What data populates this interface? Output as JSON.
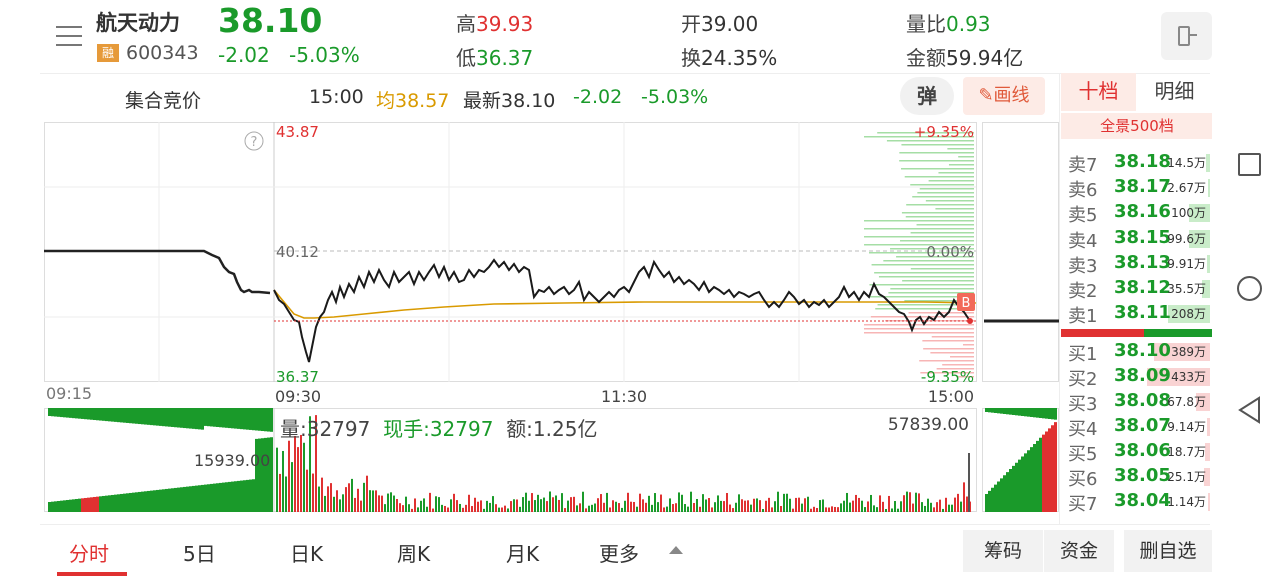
{
  "stock": {
    "name": "航天动力",
    "code": "600343",
    "badge": "融",
    "price": "38.10",
    "change": "-2.02",
    "change_pct": "-5.03%"
  },
  "stats": {
    "high_label": "高",
    "high": "39.93",
    "low_label": "低",
    "low": "36.37",
    "open_label": "开",
    "open": "39.00",
    "turnover_label": "换",
    "turnover": "24.35%",
    "vol_ratio_label": "量比",
    "vol_ratio": "0.93",
    "amount_label": "金额",
    "amount": "59.94亿"
  },
  "info_bar": {
    "auction_label": "集合竞价",
    "time": "15:00",
    "avg_label": "均38.57",
    "latest_label": "最新38.10",
    "change": "-2.02",
    "change_pct": "-5.03%",
    "popup_label": "弹",
    "draw_label": "画线"
  },
  "chart": {
    "price_max": "43.87",
    "price_mid": "40.12",
    "price_min": "36.37",
    "pct_max": "+9.35%",
    "pct_mid": "0.00%",
    "pct_min": "-9.35%",
    "time_auction": "09:15",
    "time_open": "09:30",
    "time_mid": "11:30",
    "time_close": "15:00",
    "trade_marker": "B",
    "vol_label": "量:32797",
    "current_hand_label": "现手:32797",
    "amount_label": "额:1.25亿",
    "vol_max": "57839.00",
    "auction_vol": "15939.00",
    "help": "?"
  },
  "orderbook": {
    "tab_10": "十档",
    "tab_detail": "明细",
    "full_500": "全景500档",
    "sells": [
      {
        "label": "卖7",
        "price": "38.18",
        "vol": "14.5万",
        "fill": 0.06
      },
      {
        "label": "卖6",
        "price": "38.17",
        "vol": "2.67万",
        "fill": 0.02
      },
      {
        "label": "卖5",
        "price": "38.16",
        "vol": "100万",
        "fill": 0.3
      },
      {
        "label": "卖4",
        "price": "38.15",
        "vol": "99.6万",
        "fill": 0.3
      },
      {
        "label": "卖3",
        "price": "38.13",
        "vol": "9.91万",
        "fill": 0.04
      },
      {
        "label": "卖2",
        "price": "38.12",
        "vol": "35.5万",
        "fill": 0.12
      },
      {
        "label": "卖1",
        "price": "38.11",
        "vol": "208万",
        "fill": 0.6
      }
    ],
    "buys": [
      {
        "label": "买1",
        "price": "38.10",
        "vol": "389万",
        "fill": 0.8
      },
      {
        "label": "买2",
        "price": "38.09",
        "vol": "433万",
        "fill": 0.9
      },
      {
        "label": "买3",
        "price": "38.08",
        "vol": "67.8万",
        "fill": 0.2
      },
      {
        "label": "买4",
        "price": "38.07",
        "vol": "9.14万",
        "fill": 0.04
      },
      {
        "label": "买5",
        "price": "38.06",
        "vol": "18.7万",
        "fill": 0.07
      },
      {
        "label": "买6",
        "price": "38.05",
        "vol": "25.1万",
        "fill": 0.09
      },
      {
        "label": "买7",
        "price": "38.04",
        "vol": "1.14万",
        "fill": 0.01
      }
    ]
  },
  "bottom_tabs": [
    "分时",
    "5日",
    "日K",
    "周K",
    "月K",
    "更多"
  ],
  "bottom_buttons": [
    "筹码",
    "资金",
    "删自选"
  ],
  "colors": {
    "up": "#e03131",
    "down": "#1a9a2a",
    "avg": "#d99a00",
    "accent": "#e03131"
  }
}
